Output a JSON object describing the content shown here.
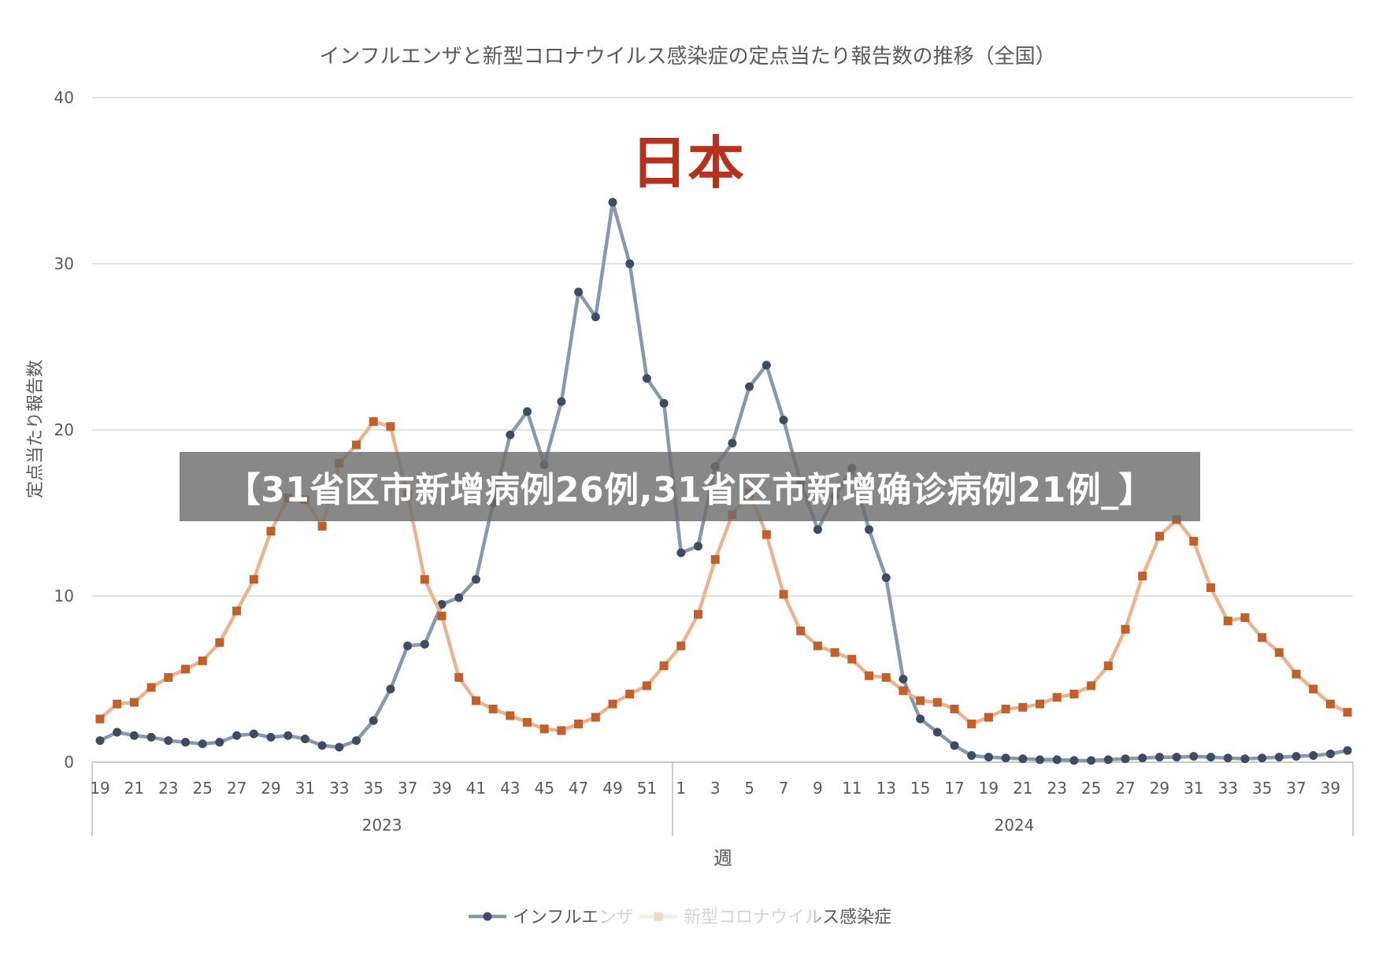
{
  "chart_data": {
    "type": "line",
    "title": "インフルエンザと新型コロナウイルス感染症の定点当たり報告数の推移（全国）",
    "ylabel": "定点当たり報告数",
    "xlabel": "週",
    "ylim": [
      0,
      40
    ],
    "yticks": [
      "0",
      "10",
      "20",
      "30",
      "40"
    ],
    "xtick_labels": [
      "19",
      "21",
      "23",
      "25",
      "27",
      "29",
      "31",
      "33",
      "35",
      "37",
      "39",
      "41",
      "43",
      "45",
      "47",
      "49",
      "51",
      "1",
      "3",
      "5",
      "7",
      "9",
      "11",
      "13",
      "15",
      "17",
      "19",
      "21",
      "23",
      "25",
      "27",
      "29",
      "31",
      "33",
      "35",
      "37",
      "39"
    ],
    "year_groups": [
      {
        "label": "2023"
      },
      {
        "label": "2024"
      }
    ],
    "grid": true,
    "legend": "bottom",
    "series": [
      {
        "name": "インフルエンザ",
        "color": "#56657e",
        "values": [
          1.3,
          1.8,
          1.6,
          1.5,
          1.3,
          1.2,
          1.1,
          1.2,
          1.6,
          1.7,
          1.5,
          1.6,
          1.4,
          1.0,
          0.9,
          1.3,
          2.5,
          4.4,
          7.0,
          7.1,
          9.5,
          9.9,
          11.0,
          15.6,
          19.7,
          21.1,
          17.9,
          21.7,
          28.3,
          26.8,
          33.7,
          30.0,
          23.1,
          21.6,
          12.6,
          13.0,
          17.8,
          19.2,
          22.6,
          23.9,
          20.6,
          16.8,
          14.0,
          16.0,
          17.7,
          14.0,
          11.1,
          5.0,
          2.6,
          1.8,
          1.0,
          0.4,
          0.3,
          0.25,
          0.2,
          0.15,
          0.15,
          0.1,
          0.1,
          0.15,
          0.2,
          0.25,
          0.3,
          0.3,
          0.35,
          0.3,
          0.25,
          0.2,
          0.25,
          0.3,
          0.35,
          0.4,
          0.5,
          0.7
        ]
      },
      {
        "name": "新型コロナウイルス感染症",
        "color": "#e8a070",
        "values": [
          2.6,
          3.5,
          3.6,
          4.5,
          5.1,
          5.6,
          6.1,
          7.2,
          9.1,
          11.0,
          13.9,
          15.9,
          15.8,
          14.2,
          18.0,
          19.1,
          20.5,
          20.2,
          16.1,
          11.0,
          8.8,
          5.1,
          3.7,
          3.2,
          2.8,
          2.4,
          2.0,
          1.9,
          2.3,
          2.7,
          3.5,
          4.1,
          4.6,
          5.8,
          7.0,
          8.9,
          12.2,
          14.9,
          16.2,
          13.7,
          10.1,
          7.9,
          7.0,
          6.6,
          6.2,
          5.2,
          5.1,
          4.3,
          3.7,
          3.6,
          3.2,
          2.3,
          2.7,
          3.2,
          3.3,
          3.5,
          3.9,
          4.1,
          4.6,
          5.8,
          8.0,
          11.2,
          13.6,
          14.6,
          13.3,
          10.5,
          8.5,
          8.7,
          7.5,
          6.6,
          5.3,
          4.4,
          3.5,
          3.0
        ]
      }
    ]
  },
  "overlay_title": "日本",
  "banner_text": "【31省区市新增病例26例,31省区市新增确诊病例21例_】",
  "colors": {
    "influenza": "#56657e",
    "covid": "#e8a070",
    "grid": "#d9d9d9",
    "overlay_title": "#b5321f",
    "banner_bg": "#6e6e6e"
  }
}
